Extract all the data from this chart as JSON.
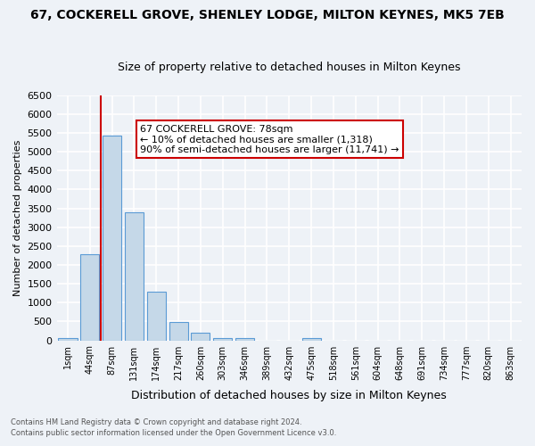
{
  "title": "67, COCKERELL GROVE, SHENLEY LODGE, MILTON KEYNES, MK5 7EB",
  "subtitle": "Size of property relative to detached houses in Milton Keynes",
  "xlabel": "Distribution of detached houses by size in Milton Keynes",
  "ylabel": "Number of detached properties",
  "footnote1": "Contains HM Land Registry data © Crown copyright and database right 2024.",
  "footnote2": "Contains public sector information licensed under the Open Government Licence v3.0.",
  "bar_labels": [
    "1sqm",
    "44sqm",
    "87sqm",
    "131sqm",
    "174sqm",
    "217sqm",
    "260sqm",
    "303sqm",
    "346sqm",
    "389sqm",
    "432sqm",
    "475sqm",
    "518sqm",
    "561sqm",
    "604sqm",
    "648sqm",
    "691sqm",
    "734sqm",
    "777sqm",
    "820sqm",
    "863sqm"
  ],
  "bar_values": [
    50,
    2280,
    5430,
    3400,
    1300,
    480,
    190,
    70,
    70,
    0,
    0,
    70,
    0,
    0,
    0,
    0,
    0,
    0,
    0,
    0,
    0
  ],
  "bar_color": "#c5d8e8",
  "bar_edge_color": "#5b9bd5",
  "vline_x": 1.5,
  "vline_color": "#cc0000",
  "annotation_text": "67 COCKERELL GROVE: 78sqm\n← 10% of detached houses are smaller (1,318)\n90% of semi-detached houses are larger (11,741) →",
  "annotation_box_color": "white",
  "annotation_box_edge": "#cc0000",
  "ylim": [
    0,
    6500
  ],
  "yticks": [
    0,
    500,
    1000,
    1500,
    2000,
    2500,
    3000,
    3500,
    4000,
    4500,
    5000,
    5500,
    6000,
    6500
  ],
  "background_color": "#eef2f7",
  "grid_color": "white",
  "title_fontsize": 10,
  "subtitle_fontsize": 9
}
